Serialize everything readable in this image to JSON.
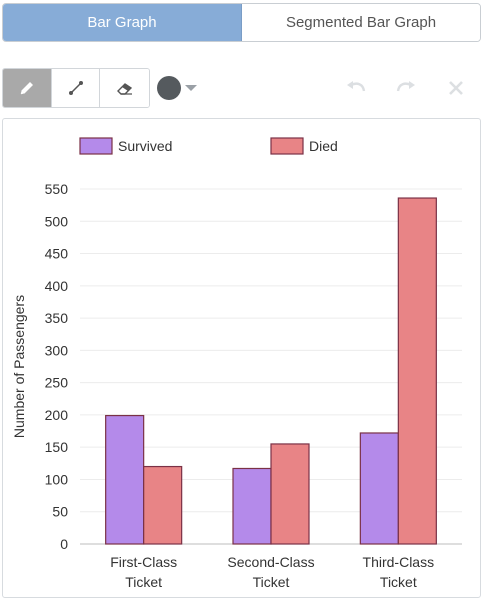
{
  "tabs": [
    {
      "label": "Bar Graph",
      "active": true
    },
    {
      "label": "Segmented Bar Graph",
      "active": false
    }
  ],
  "toolbar": {
    "tools": [
      {
        "name": "pencil-icon",
        "selected": true
      },
      {
        "name": "line-tool-icon",
        "selected": false
      },
      {
        "name": "eraser-icon",
        "selected": false
      }
    ],
    "pen_color": "#555a5e",
    "actions": [
      "undo-icon",
      "redo-icon",
      "clear-icon"
    ]
  },
  "chart_data": {
    "type": "bar",
    "categories": [
      [
        "First-Class",
        "Ticket"
      ],
      [
        "Second-Class",
        "Ticket"
      ],
      [
        "Third-Class",
        "Ticket"
      ]
    ],
    "series": [
      {
        "name": "Survived",
        "values": [
          199,
          117,
          172
        ],
        "color": "#b48aea"
      },
      {
        "name": "Died",
        "values": [
          120,
          155,
          536
        ],
        "color": "#e88486"
      }
    ],
    "ylabel": "Number of Passengers",
    "xlabel": "",
    "ylim": [
      0,
      550
    ],
    "yticks": [
      0,
      50,
      100,
      150,
      200,
      250,
      300,
      350,
      400,
      450,
      500,
      550
    ],
    "grid": true,
    "legend_position": "top"
  }
}
